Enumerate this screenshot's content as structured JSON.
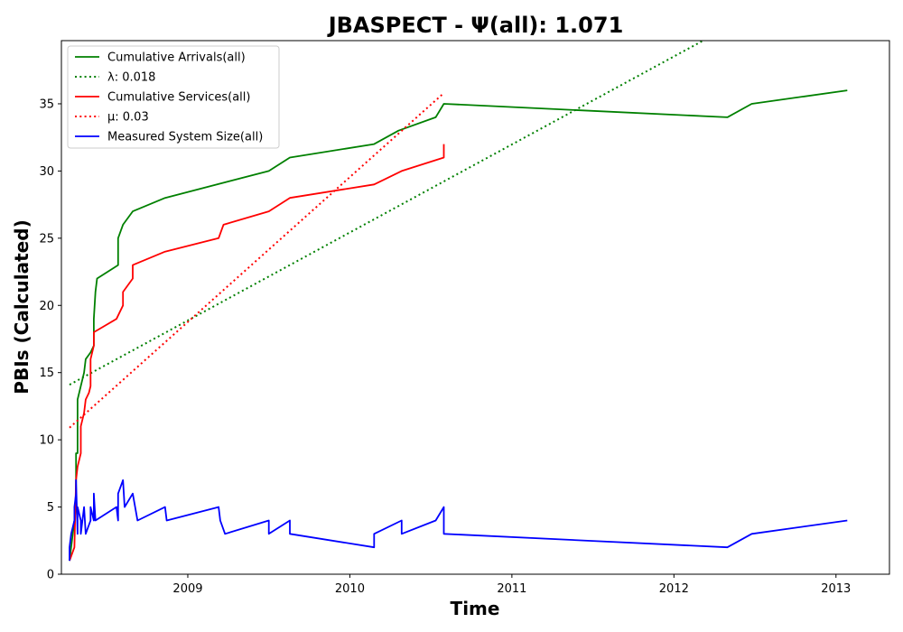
{
  "chart_data": {
    "type": "line",
    "title": "JBASPECT -  Ψ(all): 1.071",
    "xlabel": "Time",
    "ylabel": "PBIs (Calculated)",
    "xlim": [
      2008.22,
      2013.33
    ],
    "ylim": [
      0,
      39.7
    ],
    "xticks": [
      2009,
      2010,
      2011,
      2012,
      2013
    ],
    "yticks": [
      0,
      5,
      10,
      15,
      20,
      25,
      30,
      35
    ],
    "grid": false,
    "legend_position": "top-left",
    "series": [
      {
        "name": "Cumulative Arrivals(all)",
        "color": "#008000",
        "style": "solid",
        "points": [
          [
            2008.27,
            1
          ],
          [
            2008.28,
            2
          ],
          [
            2008.29,
            3
          ],
          [
            2008.3,
            4
          ],
          [
            2008.31,
            5
          ],
          [
            2008.31,
            9
          ],
          [
            2008.32,
            9
          ],
          [
            2008.32,
            13
          ],
          [
            2008.34,
            14
          ],
          [
            2008.36,
            15
          ],
          [
            2008.37,
            16
          ],
          [
            2008.4,
            16.5
          ],
          [
            2008.42,
            17
          ],
          [
            2008.42,
            19
          ],
          [
            2008.43,
            21
          ],
          [
            2008.44,
            22
          ],
          [
            2008.57,
            23
          ],
          [
            2008.57,
            25
          ],
          [
            2008.6,
            26
          ],
          [
            2008.66,
            27
          ],
          [
            2008.86,
            28
          ],
          [
            2009.5,
            30
          ],
          [
            2009.63,
            31
          ],
          [
            2010.15,
            32
          ],
          [
            2010.3,
            33
          ],
          [
            2010.53,
            34
          ],
          [
            2010.58,
            35
          ],
          [
            2012.33,
            34
          ],
          [
            2012.48,
            35
          ],
          [
            2013.07,
            36
          ]
        ]
      },
      {
        "name": "λ: 0.018",
        "color": "#008000",
        "style": "dotted",
        "points": [
          [
            2008.27,
            14.1
          ],
          [
            2012.18,
            39.7
          ]
        ]
      },
      {
        "name": "Cumulative Services(all)",
        "color": "#ff0000",
        "style": "solid",
        "points": [
          [
            2008.27,
            1
          ],
          [
            2008.3,
            2
          ],
          [
            2008.31,
            7
          ],
          [
            2008.32,
            8
          ],
          [
            2008.34,
            9
          ],
          [
            2008.34,
            11
          ],
          [
            2008.36,
            12
          ],
          [
            2008.37,
            13
          ],
          [
            2008.39,
            13.5
          ],
          [
            2008.4,
            14
          ],
          [
            2008.4,
            16
          ],
          [
            2008.42,
            17
          ],
          [
            2008.42,
            18
          ],
          [
            2008.56,
            19
          ],
          [
            2008.6,
            20
          ],
          [
            2008.6,
            21
          ],
          [
            2008.66,
            22
          ],
          [
            2008.66,
            23
          ],
          [
            2008.86,
            24
          ],
          [
            2009.19,
            25
          ],
          [
            2009.22,
            26
          ],
          [
            2009.5,
            27
          ],
          [
            2009.63,
            28
          ],
          [
            2010.15,
            29
          ],
          [
            2010.32,
            30
          ],
          [
            2010.58,
            31
          ],
          [
            2010.58,
            32
          ]
        ]
      },
      {
        "name": "μ: 0.03",
        "color": "#ff0000",
        "style": "dotted",
        "points": [
          [
            2008.27,
            10.9
          ],
          [
            2010.58,
            35.8
          ]
        ]
      },
      {
        "name": "Measured System Size(all)",
        "color": "#0000ff",
        "style": "solid",
        "points": [
          [
            2008.27,
            1
          ],
          [
            2008.27,
            2
          ],
          [
            2008.28,
            3
          ],
          [
            2008.3,
            4
          ],
          [
            2008.3,
            5
          ],
          [
            2008.31,
            6
          ],
          [
            2008.31,
            7
          ],
          [
            2008.32,
            3
          ],
          [
            2008.32,
            5
          ],
          [
            2008.34,
            4
          ],
          [
            2008.34,
            3
          ],
          [
            2008.36,
            5
          ],
          [
            2008.37,
            3
          ],
          [
            2008.4,
            4
          ],
          [
            2008.4,
            5
          ],
          [
            2008.42,
            4
          ],
          [
            2008.42,
            6
          ],
          [
            2008.43,
            4
          ],
          [
            2008.56,
            5
          ],
          [
            2008.57,
            4
          ],
          [
            2008.57,
            6
          ],
          [
            2008.6,
            7
          ],
          [
            2008.61,
            5
          ],
          [
            2008.66,
            6
          ],
          [
            2008.69,
            4
          ],
          [
            2008.86,
            5
          ],
          [
            2008.87,
            4
          ],
          [
            2009.19,
            5
          ],
          [
            2009.2,
            4
          ],
          [
            2009.23,
            3
          ],
          [
            2009.5,
            4
          ],
          [
            2009.5,
            3
          ],
          [
            2009.63,
            4
          ],
          [
            2009.63,
            3
          ],
          [
            2010.15,
            2
          ],
          [
            2010.15,
            3
          ],
          [
            2010.32,
            4
          ],
          [
            2010.32,
            3
          ],
          [
            2010.53,
            4
          ],
          [
            2010.58,
            5
          ],
          [
            2010.58,
            3
          ],
          [
            2012.33,
            2
          ],
          [
            2012.48,
            3
          ],
          [
            2013.07,
            4
          ]
        ]
      }
    ]
  }
}
